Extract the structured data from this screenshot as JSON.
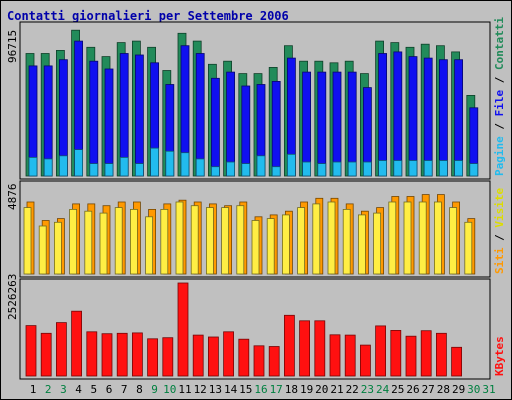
{
  "title": "Contatti giornalieri per Settembre 2006",
  "chart_data": [
    {
      "type": "bar",
      "panel": "pagine_file_contatti",
      "ylabel_parts": [
        "Pagine",
        "File",
        "Contatti"
      ],
      "ylabel_separator": " / ",
      "max_label": "96715",
      "ylim": [
        0,
        96715
      ],
      "categories": [
        "1",
        "2",
        "3",
        "4",
        "5",
        "6",
        "7",
        "8",
        "9",
        "10",
        "11",
        "12",
        "13",
        "14",
        "15",
        "16",
        "17",
        "18",
        "19",
        "20",
        "21",
        "22",
        "23",
        "24",
        "25",
        "26",
        "27",
        "28",
        "29",
        "30",
        "31"
      ],
      "series": [
        {
          "name": "Contatti",
          "color": "#228b5a",
          "values": [
            79000,
            79000,
            81000,
            94000,
            83000,
            77000,
            86000,
            87000,
            83000,
            68000,
            92000,
            87000,
            72000,
            74000,
            66000,
            66000,
            70000,
            84000,
            74000,
            74000,
            73000,
            74000,
            66000,
            87000,
            86000,
            83000,
            85000,
            84000,
            80000,
            52000,
            null
          ]
        },
        {
          "name": "File",
          "color": "#1010f0",
          "values": [
            71000,
            71000,
            75000,
            87000,
            74000,
            69000,
            79000,
            78000,
            73000,
            59000,
            84000,
            79000,
            63000,
            67000,
            58000,
            59000,
            61000,
            76000,
            67000,
            67000,
            67000,
            67000,
            57000,
            79000,
            80000,
            77000,
            76000,
            75000,
            75000,
            44000,
            null
          ]
        },
        {
          "name": "Pagine",
          "color": "#22bbee",
          "values": [
            12000,
            11000,
            13000,
            17000,
            8000,
            8000,
            12000,
            8000,
            18000,
            16000,
            15000,
            11000,
            6000,
            9000,
            8000,
            13000,
            6000,
            14000,
            9000,
            8000,
            9000,
            9000,
            9000,
            10000,
            10000,
            10000,
            10000,
            10000,
            10000,
            8000,
            null
          ]
        }
      ]
    },
    {
      "type": "bar",
      "panel": "siti_visite",
      "ylabel_parts": [
        "Siti",
        "Visite"
      ],
      "ylabel_separator": " / ",
      "max_label": "4876",
      "ylim": [
        0,
        4876
      ],
      "categories": [
        "1",
        "2",
        "3",
        "4",
        "5",
        "6",
        "7",
        "8",
        "9",
        "10",
        "11",
        "12",
        "13",
        "14",
        "15",
        "16",
        "17",
        "18",
        "19",
        "20",
        "21",
        "22",
        "23",
        "24",
        "25",
        "26",
        "27",
        "28",
        "29",
        "30",
        "31"
      ],
      "series": [
        {
          "name": "Visite",
          "color": "#ff9900",
          "values": [
            3900,
            2900,
            3000,
            3800,
            3800,
            3700,
            3900,
            3900,
            3500,
            3800,
            4000,
            3900,
            3800,
            3700,
            3900,
            3100,
            3200,
            3400,
            3900,
            4100,
            4100,
            3800,
            3400,
            3600,
            4200,
            4200,
            4300,
            4300,
            3900,
            3000,
            null
          ]
        },
        {
          "name": "Siti",
          "color": "#ffee44",
          "values": [
            3600,
            2600,
            2800,
            3500,
            3400,
            3300,
            3600,
            3500,
            3100,
            3500,
            3900,
            3700,
            3600,
            3600,
            3700,
            2900,
            3000,
            3200,
            3600,
            3800,
            3900,
            3500,
            3200,
            3300,
            3900,
            3900,
            3900,
            3900,
            3600,
            2800,
            null
          ]
        }
      ]
    },
    {
      "type": "bar",
      "panel": "kbytes",
      "ylabel": "KBytes",
      "max_label": "2526263",
      "ylim": [
        0,
        2526263
      ],
      "categories": [
        "1",
        "2",
        "3",
        "4",
        "5",
        "6",
        "7",
        "8",
        "9",
        "10",
        "11",
        "12",
        "13",
        "14",
        "15",
        "16",
        "17",
        "18",
        "19",
        "20",
        "21",
        "22",
        "23",
        "24",
        "25",
        "26",
        "27",
        "28",
        "29",
        "30",
        "31"
      ],
      "series": [
        {
          "name": "KBytes",
          "color": "#ff1010",
          "values": [
            1370000,
            1160000,
            1450000,
            1760000,
            1200000,
            1150000,
            1160000,
            1170000,
            1010000,
            1040000,
            2526263,
            1110000,
            1060000,
            1200000,
            1000000,
            820000,
            800000,
            1650000,
            1500000,
            1500000,
            1120000,
            1110000,
            840000,
            1360000,
            1240000,
            1080000,
            1230000,
            1160000,
            780000,
            null,
            null
          ]
        }
      ]
    }
  ],
  "day_labels": {
    "weekday_color": "#000000",
    "weekend_color": "#008040",
    "weekend_days": [
      "2",
      "3",
      "9",
      "10",
      "16",
      "17",
      "23",
      "24",
      "30",
      "31"
    ]
  }
}
